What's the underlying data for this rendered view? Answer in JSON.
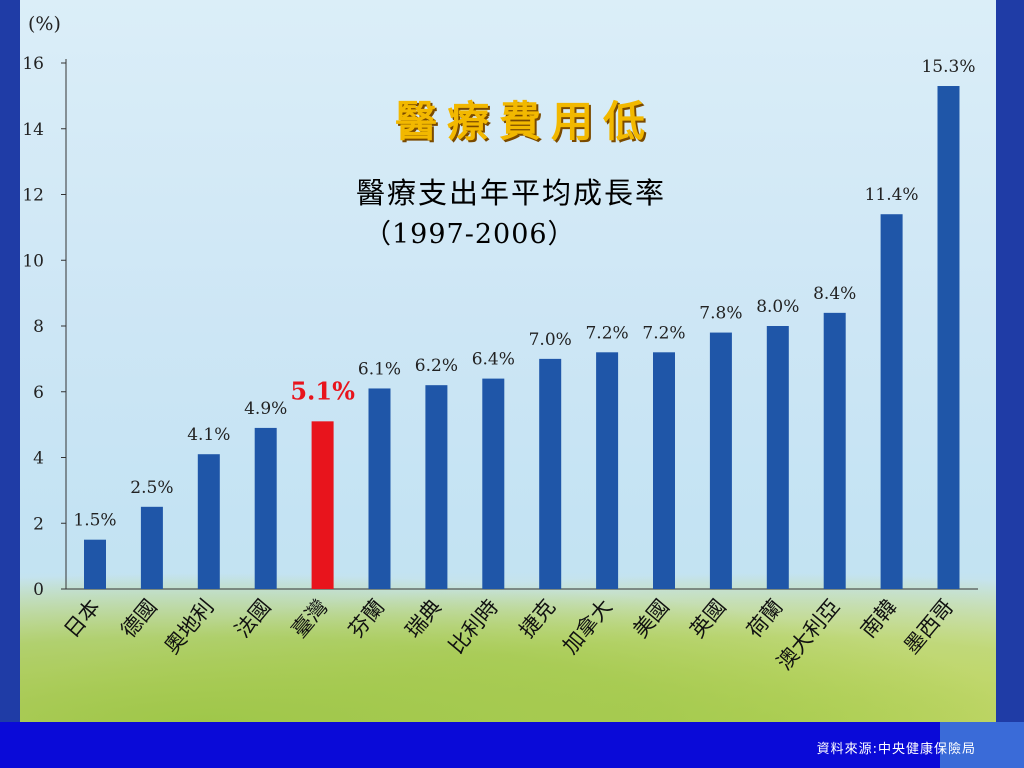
{
  "footer": {
    "source": "資料來源:中央健康保險局"
  },
  "chart_data": {
    "type": "bar",
    "title": "醫療費用低",
    "subtitle": "醫療支出年平均成長率",
    "period": "（1997-2006）",
    "ylabel": "(%)",
    "ylim": [
      0,
      16
    ],
    "yticks": [
      0,
      2,
      4,
      6,
      8,
      10,
      12,
      14,
      16
    ],
    "categories": [
      "日本",
      "德國",
      "奧地利",
      "法國",
      "臺灣",
      "芬蘭",
      "瑞典",
      "比利時",
      "捷克",
      "加拿大",
      "美國",
      "英國",
      "荷蘭",
      "澳大利亞",
      "南韓",
      "墨西哥"
    ],
    "values": [
      1.5,
      2.5,
      4.1,
      4.9,
      5.1,
      6.1,
      6.2,
      6.4,
      7.0,
      7.2,
      7.2,
      7.8,
      8.0,
      8.4,
      11.4,
      15.3
    ],
    "value_labels": [
      "1.5%",
      "2.5%",
      "4.1%",
      "4.9%",
      "5.1%",
      "6.1%",
      "6.2%",
      "6.4%",
      "7.0%",
      "7.2%",
      "7.2%",
      "7.8%",
      "8.0%",
      "8.4%",
      "11.4%",
      "15.3%"
    ],
    "highlight_index": 4,
    "colors": {
      "bar": "#1f56a8",
      "highlight": "#e8141c",
      "highlight_label": "#e8141c"
    },
    "grid": false,
    "legend": "none"
  }
}
